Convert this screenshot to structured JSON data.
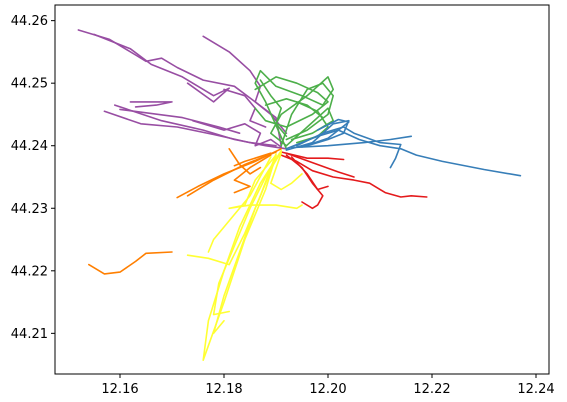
{
  "chart_data": {
    "type": "line",
    "title": "",
    "xlabel": "",
    "ylabel": "",
    "xlim": [
      12.1475,
      12.2425
    ],
    "ylim": [
      44.2035,
      44.2625
    ],
    "xticks": [
      12.16,
      12.18,
      12.2,
      12.22,
      12.24
    ],
    "xtick_labels": [
      "12.16",
      "12.18",
      "12.20",
      "12.22",
      "12.24"
    ],
    "yticks": [
      44.21,
      44.22,
      44.23,
      44.24,
      44.25,
      44.26
    ],
    "ytick_labels": [
      "44.21",
      "44.22",
      "44.23",
      "44.24",
      "44.25",
      "44.26"
    ],
    "grid": false,
    "legend": "none",
    "series": [
      {
        "name": "purple",
        "color": "#984ea3",
        "paths": [
          [
            [
              12.152,
              44.2585
            ],
            [
              12.158,
              44.257
            ],
            [
              12.163,
              44.2545
            ],
            [
              12.165,
              44.2535
            ],
            [
              12.168,
              44.254
            ],
            [
              12.171,
              44.2525
            ],
            [
              12.176,
              44.2505
            ],
            [
              12.182,
              44.2495
            ],
            [
              12.186,
              44.247
            ],
            [
              12.19,
              44.2445
            ],
            [
              12.191,
              44.24
            ]
          ],
          [
            [
              12.155,
              44.2578
            ],
            [
              12.162,
              44.2555
            ],
            [
              12.166,
              44.253
            ],
            [
              12.172,
              44.251
            ],
            [
              12.178,
              44.248
            ],
            [
              12.181,
              44.2492
            ],
            [
              12.178,
              44.247
            ],
            [
              12.173,
              44.25
            ]
          ],
          [
            [
              12.176,
              44.2575
            ],
            [
              12.181,
              44.255
            ],
            [
              12.185,
              44.252
            ],
            [
              12.187,
              44.2495
            ],
            [
              12.186,
              44.247
            ],
            [
              12.189,
              44.245
            ],
            [
              12.192,
              44.242
            ]
          ],
          [
            [
              12.159,
              44.2465
            ],
            [
              12.168,
              44.244
            ],
            [
              12.176,
              44.2425
            ],
            [
              12.182,
              44.241
            ],
            [
              12.188,
              44.24
            ],
            [
              12.192,
              44.2395
            ]
          ],
          [
            [
              12.157,
              44.2455
            ],
            [
              12.164,
              44.2435
            ],
            [
              12.171,
              44.243
            ],
            [
              12.178,
              44.2418
            ],
            [
              12.185,
              44.2405
            ],
            [
              12.19,
              44.24
            ]
          ],
          [
            [
              12.162,
              44.247
            ],
            [
              12.17,
              44.247
            ],
            [
              12.167,
              44.2465
            ],
            [
              12.163,
              44.2462
            ]
          ],
          [
            [
              12.174,
              44.244
            ],
            [
              12.18,
              44.2425
            ],
            [
              12.184,
              44.2435
            ],
            [
              12.187,
              44.242
            ],
            [
              12.186,
              44.24
            ],
            [
              12.189,
              44.241
            ],
            [
              12.191,
              44.2398
            ]
          ],
          [
            [
              12.18,
              44.249
            ],
            [
              12.184,
              44.248
            ],
            [
              12.186,
              44.246
            ],
            [
              12.185,
              44.244
            ],
            [
              12.188,
              44.243
            ]
          ],
          [
            [
              12.16,
              44.2458
            ],
            [
              12.172,
              44.2445
            ],
            [
              12.179,
              44.243
            ],
            [
              12.183,
              44.242
            ]
          ]
        ]
      },
      {
        "name": "green",
        "color": "#4daf4a",
        "paths": [
          [
            [
              12.192,
              44.2395
            ],
            [
              12.188,
              44.247
            ],
            [
              12.186,
              44.25
            ],
            [
              12.187,
              44.252
            ],
            [
              12.19,
              44.2495
            ],
            [
              12.195,
              44.248
            ],
            [
              12.199,
              44.2465
            ],
            [
              12.201,
              44.249
            ],
            [
              12.2,
              44.251
            ],
            [
              12.196,
              44.248
            ],
            [
              12.191,
              44.245
            ],
            [
              12.189,
              44.242
            ],
            [
              12.192,
              44.24
            ]
          ],
          [
            [
              12.192,
              44.24
            ],
            [
              12.196,
              44.243
            ],
            [
              12.2,
              44.246
            ],
            [
              12.201,
              44.244
            ],
            [
              12.197,
              44.242
            ],
            [
              12.193,
              44.241
            ]
          ],
          [
            [
              12.186,
              44.249
            ],
            [
              12.19,
              44.251
            ],
            [
              12.194,
              44.25
            ],
            [
              12.198,
              44.2485
            ],
            [
              12.2,
              44.247
            ],
            [
              12.197,
              44.245
            ],
            [
              12.192,
              44.243
            ],
            [
              12.188,
              44.244
            ],
            [
              12.186,
              44.246
            ]
          ],
          [
            [
              12.191,
              44.24
            ],
            [
              12.193,
              44.245
            ],
            [
              12.196,
              44.249
            ],
            [
              12.199,
              44.25
            ],
            [
              12.201,
              44.248
            ],
            [
              12.2,
              44.245
            ],
            [
              12.196,
              44.2425
            ],
            [
              12.192,
              44.241
            ]
          ],
          [
            [
              12.187,
              44.2505
            ],
            [
              12.189,
              44.248
            ],
            [
              12.191,
              44.246
            ],
            [
              12.19,
              44.2435
            ],
            [
              12.192,
              44.2415
            ]
          ],
          [
            [
              12.194,
              44.247
            ],
            [
              12.198,
              44.2455
            ],
            [
              12.2,
              44.243
            ],
            [
              12.198,
              44.2415
            ],
            [
              12.194,
              44.2405
            ]
          ],
          [
            [
              12.188,
              44.2465
            ],
            [
              12.192,
              44.2475
            ],
            [
              12.196,
              44.2465
            ],
            [
              12.199,
              44.2445
            ]
          ]
        ]
      },
      {
        "name": "blue",
        "color": "#377eb8",
        "paths": [
          [
            [
              12.192,
              44.2395
            ],
            [
              12.198,
              44.2415
            ],
            [
              12.202,
              44.2425
            ],
            [
              12.206,
              44.241
            ],
            [
              12.21,
              44.24
            ],
            [
              12.214,
              44.2395
            ],
            [
              12.217,
              44.2385
            ],
            [
              12.222,
              44.2375
            ],
            [
              12.23,
              44.2362
            ],
            [
              12.237,
              44.2352
            ]
          ],
          [
            [
              12.192,
              44.2393
            ],
            [
              12.197,
              44.2405
            ],
            [
              12.201,
              44.2435
            ],
            [
              12.204,
              44.244
            ],
            [
              12.203,
              44.242
            ],
            [
              12.2,
              44.241
            ],
            [
              12.196,
              44.24
            ]
          ],
          [
            [
              12.193,
              44.2397
            ],
            [
              12.2,
              44.24
            ],
            [
              12.207,
              44.2405
            ],
            [
              12.212,
              44.241
            ],
            [
              12.216,
              44.2415
            ]
          ],
          [
            [
              12.194,
              44.24
            ],
            [
              12.199,
              44.242
            ],
            [
              12.203,
              44.243
            ],
            [
              12.205,
              44.242
            ],
            [
              12.21,
              44.2405
            ],
            [
              12.214,
              44.2402
            ],
            [
              12.213,
              44.238
            ],
            [
              12.212,
              44.2365
            ]
          ],
          [
            [
              12.195,
              44.2398
            ],
            [
              12.2,
              44.2412
            ],
            [
              12.204,
              44.2438
            ],
            [
              12.202,
              44.2442
            ],
            [
              12.198,
              44.2425
            ]
          ]
        ]
      },
      {
        "name": "red",
        "color": "#e41a1c",
        "paths": [
          [
            [
              12.191,
              44.2385
            ],
            [
              12.194,
              44.2375
            ],
            [
              12.197,
              44.236
            ],
            [
              12.201,
              44.235
            ],
            [
              12.205,
              44.2345
            ],
            [
              12.208,
              44.234
            ],
            [
              12.211,
              44.2325
            ],
            [
              12.214,
              44.2318
            ],
            [
              12.216,
              44.232
            ],
            [
              12.219,
              44.2318
            ]
          ],
          [
            [
              12.191,
              44.239
            ],
            [
              12.196,
              44.238
            ],
            [
              12.2,
              44.238
            ],
            [
              12.203,
              44.2378
            ]
          ],
          [
            [
              12.192,
              44.2385
            ],
            [
              12.195,
              44.2365
            ],
            [
              12.197,
              44.234
            ],
            [
              12.199,
              44.232
            ],
            [
              12.198,
              44.2305
            ],
            [
              12.197,
              44.23
            ],
            [
              12.195,
              44.231
            ]
          ],
          [
            [
              12.192,
              44.2388
            ],
            [
              12.198,
              44.237
            ],
            [
              12.202,
              44.2358
            ],
            [
              12.205,
              44.235
            ]
          ],
          [
            [
              12.193,
              44.2382
            ],
            [
              12.196,
              44.2355
            ],
            [
              12.198,
              44.233
            ],
            [
              12.2,
              44.2335
            ]
          ]
        ]
      },
      {
        "name": "orange",
        "color": "#ff7f00",
        "paths": [
          [
            [
              12.191,
              44.2395
            ],
            [
              12.186,
              44.2375
            ],
            [
              12.18,
              44.2355
            ],
            [
              12.175,
              44.2335
            ],
            [
              12.171,
              44.2317
            ]
          ],
          [
            [
              12.19,
              44.239
            ],
            [
              12.184,
              44.237
            ],
            [
              12.178,
              44.2345
            ],
            [
              12.173,
              44.232
            ]
          ],
          [
            [
              12.189,
              44.2385
            ],
            [
              12.185,
              44.2365
            ],
            [
              12.182,
              44.2345
            ],
            [
              12.185,
              44.2335
            ],
            [
              12.182,
              44.2325
            ]
          ],
          [
            [
              12.189,
              44.2388
            ],
            [
              12.184,
              44.2375
            ],
            [
              12.182,
              44.2368
            ]
          ],
          [
            [
              12.181,
              44.2395
            ],
            [
              12.183,
              44.237
            ],
            [
              12.185,
              44.2355
            ],
            [
              12.187,
              44.2365
            ]
          ],
          [
            [
              12.154,
              44.221
            ],
            [
              12.157,
              44.2195
            ],
            [
              12.16,
              44.2198
            ],
            [
              12.163,
              44.2215
            ],
            [
              12.165,
              44.2228
            ],
            [
              12.17,
              44.223
            ]
          ]
        ]
      },
      {
        "name": "yellow",
        "color": "#ffff33",
        "paths": [
          [
            [
              12.191,
              44.2392
            ],
            [
              12.187,
              44.234
            ],
            [
              12.183,
              44.227
            ],
            [
              12.18,
              44.22
            ],
            [
              12.177,
              44.212
            ],
            [
              12.176,
              44.2057
            ],
            [
              12.18,
              44.215
            ],
            [
              12.184,
              44.225
            ],
            [
              12.188,
              44.233
            ],
            [
              12.19,
              44.2385
            ]
          ],
          [
            [
              12.191,
              44.239
            ],
            [
              12.188,
              44.235
            ],
            [
              12.185,
              44.23
            ],
            [
              12.182,
              44.224
            ],
            [
              12.179,
              44.218
            ],
            [
              12.178,
              44.213
            ],
            [
              12.181,
              44.2135
            ]
          ],
          [
            [
              12.19,
              44.2385
            ],
            [
              12.186,
              44.2345
            ],
            [
              12.184,
              44.2305
            ],
            [
              12.181,
              44.23
            ],
            [
              12.185,
              44.2305
            ],
            [
              12.19,
              44.2305
            ],
            [
              12.194,
              44.23
            ],
            [
              12.195,
              44.2305
            ]
          ],
          [
            [
              12.19,
              44.2387
            ],
            [
              12.187,
              44.232
            ],
            [
              12.184,
              44.226
            ],
            [
              12.181,
              44.221
            ],
            [
              12.177,
              44.222
            ],
            [
              12.173,
              44.2225
            ]
          ],
          [
            [
              12.19,
              44.238
            ],
            [
              12.186,
              44.23
            ],
            [
              12.183,
              44.223
            ],
            [
              12.18,
              44.216
            ],
            [
              12.178,
              44.21
            ],
            [
              12.18,
              44.212
            ]
          ],
          [
            [
              12.191,
              44.2388
            ],
            [
              12.189,
              44.234
            ],
            [
              12.191,
              44.233
            ],
            [
              12.193,
              44.234
            ],
            [
              12.195,
              44.2355
            ]
          ],
          [
            [
              12.189,
              44.2382
            ],
            [
              12.185,
              44.232
            ],
            [
              12.181,
              44.228
            ],
            [
              12.178,
              44.225
            ],
            [
              12.177,
              44.223
            ]
          ]
        ]
      }
    ]
  }
}
